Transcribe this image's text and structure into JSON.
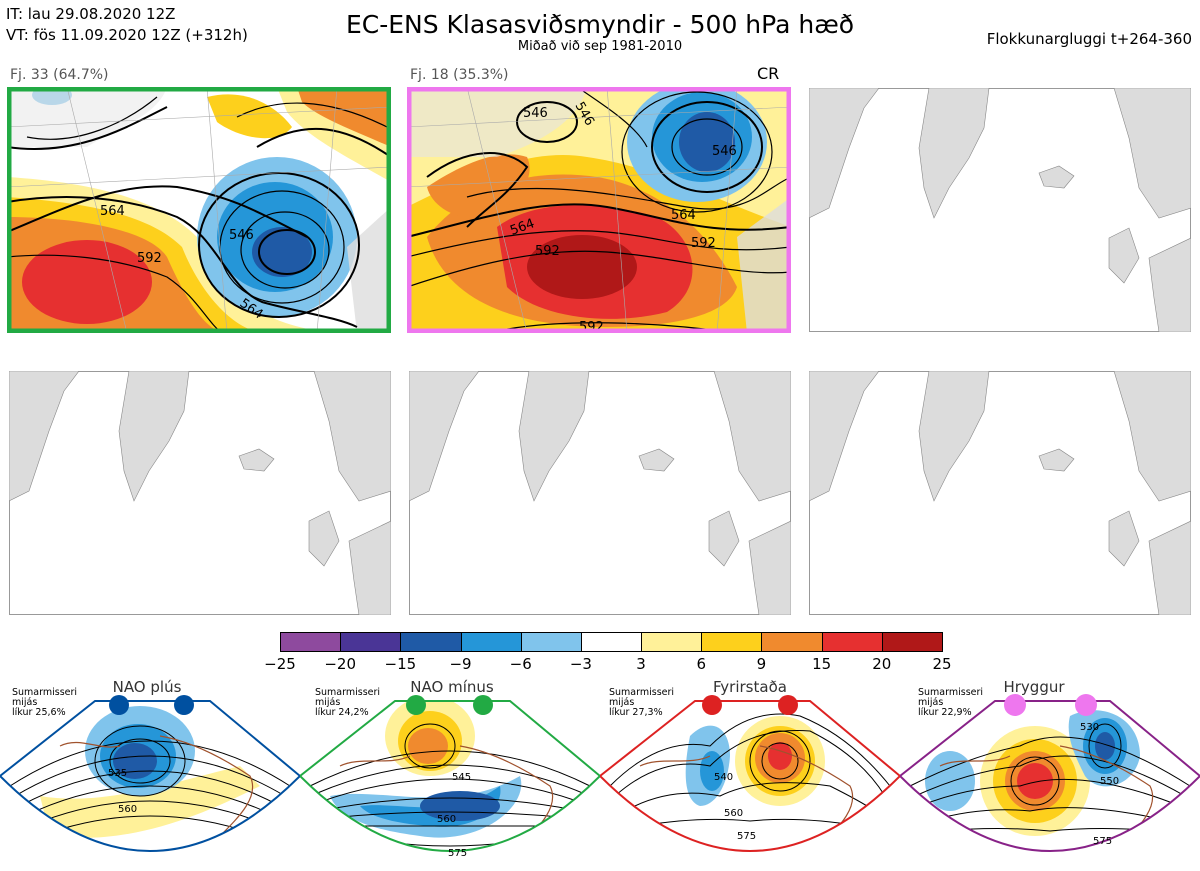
{
  "header": {
    "it_line": "IT: lau 29.08.2020 12Z",
    "vt_line": "VT: fös 11.09.2020 12Z  (+312h)",
    "title": "EC-ENS Klasasviðsmyndir - 500 hPa hæð",
    "subtitle": "Miðað við sep 1981-2010",
    "window": "Flokkunargluggi t+264-360"
  },
  "panels": [
    {
      "label": "Fj. 33 (64.7%)",
      "border": "#22aa44",
      "contours": [
        "546",
        "564",
        "592",
        "564"
      ]
    },
    {
      "label": "Fj. 18 (35.3%)",
      "tag": "CR",
      "border": "#ee77ee",
      "contours": [
        "546",
        "546",
        "564",
        "592",
        "564",
        "592",
        "546"
      ]
    }
  ],
  "colorbar": {
    "ticks": [
      "−25",
      "−20",
      "−15",
      "−9",
      "−6",
      "−3",
      "3",
      "6",
      "9",
      "15",
      "20",
      "25"
    ],
    "colors": [
      "#8e4a9e",
      "#4a3596",
      "#1f5aa6",
      "#2596d8",
      "#80c4ec",
      "#ffffff",
      "#fff199",
      "#fdd01c",
      "#f08a2e",
      "#e63030",
      "#b01818"
    ]
  },
  "regimes": [
    {
      "name": "NAO plús",
      "info": [
        "Sumarmisseri",
        "mijás",
        "líkur 25,6%"
      ],
      "color": "#0050a0",
      "contours": [
        "535",
        "560"
      ]
    },
    {
      "name": "NAO mínus",
      "info": [
        "Sumarmisseri",
        "mijás",
        "líkur 24,2%"
      ],
      "color": "#22aa44",
      "contours": [
        "545",
        "560",
        "575"
      ]
    },
    {
      "name": "Fyrirstaða",
      "info": [
        "Sumarmisseri",
        "mijás",
        "líkur 27,3%"
      ],
      "color": "#dd2222",
      "contours": [
        "540",
        "560",
        "575"
      ]
    },
    {
      "name": "Hryggur",
      "info": [
        "Sumarmisseri",
        "mijás",
        "líkur 22,9%"
      ],
      "color": "#ee77ee",
      "contours": [
        "530",
        "550",
        "575"
      ]
    }
  ]
}
